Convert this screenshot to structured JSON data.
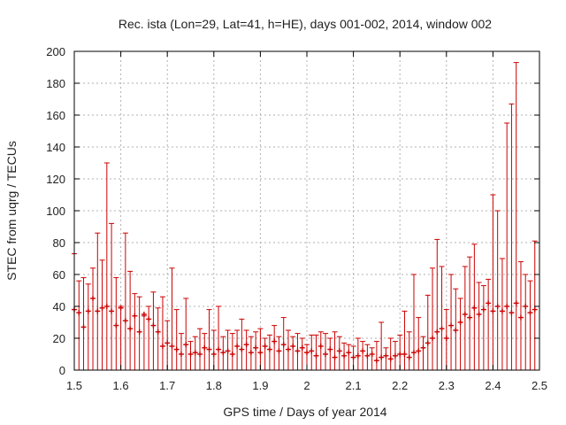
{
  "chart_data": {
    "type": "scatter",
    "title": "Rec. ista (Lon=29, Lat=41, h=HE), days 001-002, 2014, window 002",
    "xlabel": "GPS time / Days of year 2014",
    "ylabel": "STEC from uqrg / TECUs",
    "xlim": [
      1.5,
      2.5
    ],
    "ylim": [
      0,
      200
    ],
    "x_ticks": [
      "1.5",
      "1.6",
      "1.7",
      "1.8",
      "1.9",
      "2",
      "2.1",
      "2.2",
      "2.3",
      "2.4",
      "2.5"
    ],
    "y_ticks": [
      "0",
      "20",
      "40",
      "60",
      "80",
      "100",
      "120",
      "140",
      "160",
      "180",
      "200"
    ],
    "grid": true,
    "color": "#cc0000",
    "error_bars": "from 0 to upper value",
    "points": [
      [
        1.5,
        38,
        73
      ],
      [
        1.51,
        36,
        56
      ],
      [
        1.52,
        27,
        58
      ],
      [
        1.53,
        37,
        54
      ],
      [
        1.54,
        45,
        64
      ],
      [
        1.55,
        37,
        86
      ],
      [
        1.56,
        39,
        69
      ],
      [
        1.57,
        40,
        130
      ],
      [
        1.58,
        37,
        92
      ],
      [
        1.59,
        28,
        58
      ],
      [
        1.6,
        39,
        40
      ],
      [
        1.61,
        31,
        86
      ],
      [
        1.62,
        26,
        62
      ],
      [
        1.63,
        34,
        48
      ],
      [
        1.64,
        24,
        46
      ],
      [
        1.65,
        35,
        34
      ],
      [
        1.66,
        32,
        40
      ],
      [
        1.67,
        28,
        49
      ],
      [
        1.68,
        24,
        39
      ],
      [
        1.69,
        15,
        46
      ],
      [
        1.7,
        17,
        31
      ],
      [
        1.71,
        15,
        64
      ],
      [
        1.72,
        13,
        38
      ],
      [
        1.73,
        10,
        23
      ],
      [
        1.74,
        16,
        45
      ],
      [
        1.75,
        10,
        18
      ],
      [
        1.76,
        11,
        21
      ],
      [
        1.77,
        10,
        26
      ],
      [
        1.78,
        14,
        23
      ],
      [
        1.79,
        13,
        38
      ],
      [
        1.8,
        10,
        25
      ],
      [
        1.81,
        13,
        40
      ],
      [
        1.82,
        11,
        21
      ],
      [
        1.83,
        12,
        25
      ],
      [
        1.84,
        10,
        23
      ],
      [
        1.85,
        15,
        25
      ],
      [
        1.86,
        13,
        32
      ],
      [
        1.87,
        16,
        25
      ],
      [
        1.88,
        11,
        21
      ],
      [
        1.89,
        14,
        24
      ],
      [
        1.9,
        11,
        26
      ],
      [
        1.91,
        15,
        20
      ],
      [
        1.92,
        13,
        22
      ],
      [
        1.93,
        18,
        28
      ],
      [
        1.94,
        12,
        21
      ],
      [
        1.95,
        16,
        33
      ],
      [
        1.96,
        13,
        25
      ],
      [
        1.97,
        15,
        21
      ],
      [
        1.98,
        12,
        23
      ],
      [
        1.99,
        14,
        20
      ],
      [
        2.0,
        11,
        16
      ],
      [
        2.01,
        12,
        22
      ],
      [
        2.02,
        9,
        22
      ],
      [
        2.03,
        15,
        24
      ],
      [
        2.04,
        10,
        23
      ],
      [
        2.05,
        13,
        20
      ],
      [
        2.06,
        8,
        24
      ],
      [
        2.07,
        12,
        21
      ],
      [
        2.08,
        9,
        17
      ],
      [
        2.09,
        11,
        16
      ],
      [
        2.1,
        8,
        15
      ],
      [
        2.11,
        9,
        20
      ],
      [
        2.12,
        12,
        18
      ],
      [
        2.13,
        9,
        16
      ],
      [
        2.14,
        10,
        14
      ],
      [
        2.15,
        6,
        18
      ],
      [
        2.16,
        8,
        30
      ],
      [
        2.17,
        9,
        14
      ],
      [
        2.18,
        7,
        20
      ],
      [
        2.19,
        9,
        18
      ],
      [
        2.2,
        10,
        22
      ],
      [
        2.21,
        10,
        37
      ],
      [
        2.22,
        8,
        24
      ],
      [
        2.23,
        11,
        60
      ],
      [
        2.24,
        12,
        33
      ],
      [
        2.25,
        14,
        21
      ],
      [
        2.26,
        17,
        47
      ],
      [
        2.27,
        20,
        64
      ],
      [
        2.28,
        24,
        82
      ],
      [
        2.29,
        26,
        65
      ],
      [
        2.3,
        20,
        38
      ],
      [
        2.31,
        28,
        60
      ],
      [
        2.32,
        25,
        51
      ],
      [
        2.33,
        30,
        45
      ],
      [
        2.34,
        35,
        65
      ],
      [
        2.35,
        33,
        71
      ],
      [
        2.36,
        39,
        79
      ],
      [
        2.37,
        35,
        55
      ],
      [
        2.38,
        38,
        53
      ],
      [
        2.39,
        42,
        57
      ],
      [
        2.4,
        37,
        110
      ],
      [
        2.41,
        40,
        100
      ],
      [
        2.42,
        37,
        70
      ],
      [
        2.43,
        40,
        155
      ],
      [
        2.44,
        36,
        167
      ],
      [
        2.45,
        42,
        193
      ],
      [
        2.46,
        33,
        68
      ],
      [
        2.47,
        40,
        60
      ],
      [
        2.48,
        36,
        56
      ],
      [
        2.49,
        38,
        81
      ]
    ]
  }
}
